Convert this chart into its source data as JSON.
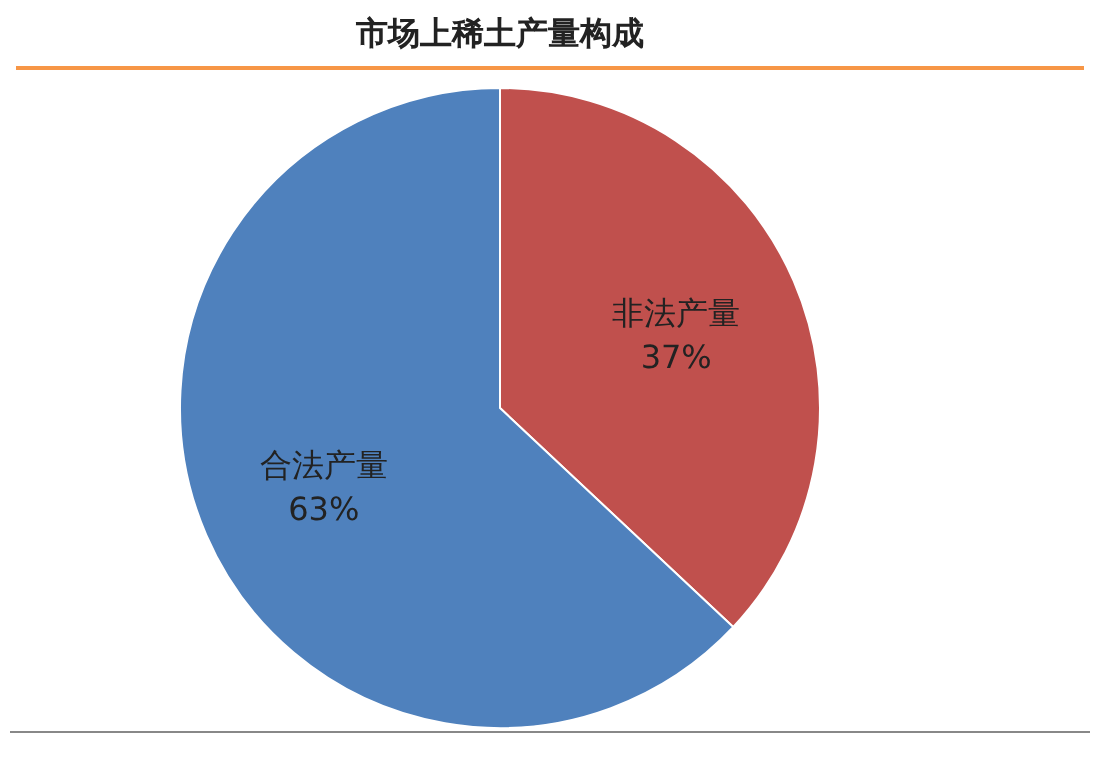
{
  "chart_data": {
    "type": "pie",
    "title": "市场上稀土产量构成",
    "categories": [
      "非法产量",
      "合法产量"
    ],
    "values": [
      37,
      63
    ],
    "value_labels": [
      "37%",
      "63%"
    ],
    "colors": [
      "#c0504d",
      "#4f81bd"
    ],
    "legend": false
  }
}
